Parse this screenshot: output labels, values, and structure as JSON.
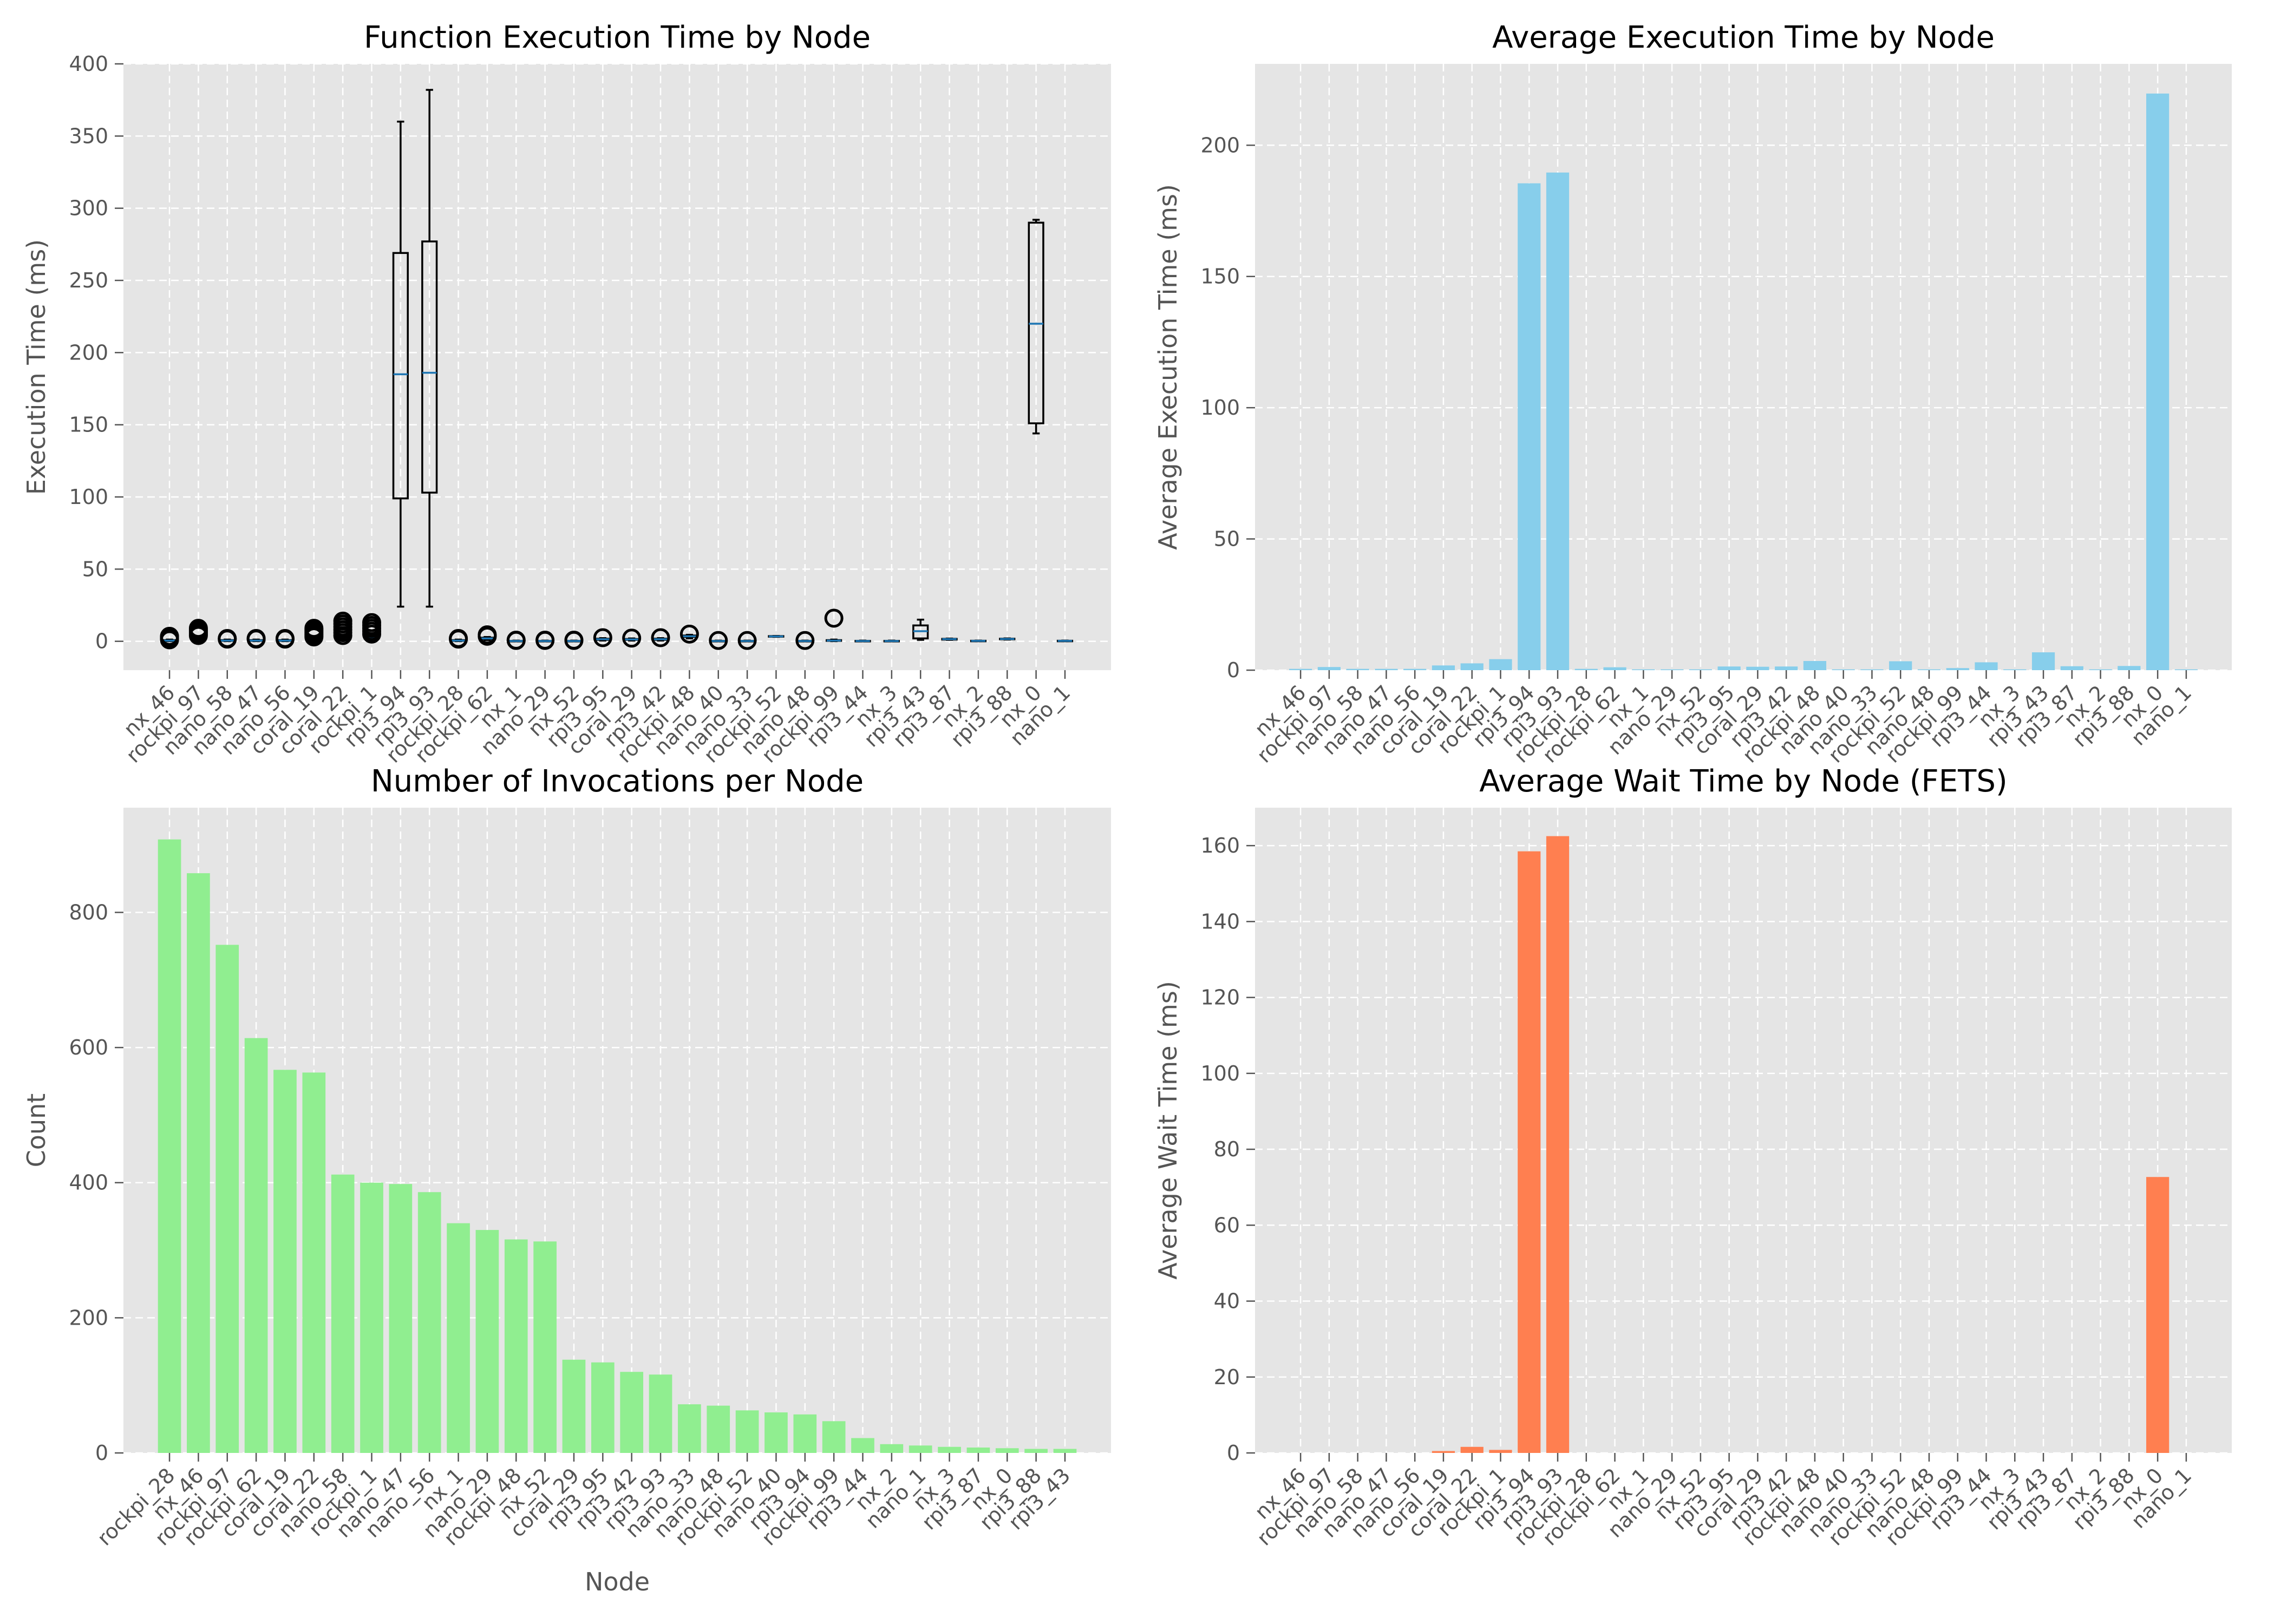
{
  "chart_data": [
    {
      "type": "box",
      "title": "Function Execution Time by Node",
      "xlabel": "",
      "ylabel": "Execution Time (ms)",
      "ylim": [
        -20,
        400
      ],
      "yticks": [
        0,
        50,
        100,
        150,
        200,
        250,
        300,
        350,
        400
      ],
      "grid": true,
      "categories": [
        "nx_46",
        "rockpi_97",
        "nano_58",
        "nano_47",
        "nano_56",
        "coral_19",
        "coral_22",
        "rockpi_1",
        "rpi3_94",
        "rpi3_93",
        "rockpi_28",
        "rockpi_62",
        "nx_1",
        "nano_29",
        "nx_52",
        "rpi3_95",
        "coral_29",
        "rpi3_42",
        "rockpi_48",
        "nano_40",
        "nano_33",
        "rockpi_52",
        "nano_48",
        "rockpi_99",
        "rpi3_44",
        "nx_3",
        "rpi3_43",
        "rpi3_87",
        "nx_2",
        "rpi3_88",
        "nx_0",
        "nano_1"
      ],
      "boxes": [
        {
          "q1": 0.3,
          "median": 0.5,
          "q3": 0.8,
          "whislo": 0.1,
          "whishi": 1.2,
          "fliers": [
            1,
            2,
            2.5,
            3,
            3.5
          ]
        },
        {
          "q1": 1.5,
          "median": 2,
          "q3": 2.5,
          "whislo": 0.8,
          "whishi": 3.5,
          "fliers": [
            4,
            5,
            6,
            7,
            8,
            9
          ]
        },
        {
          "q1": 0.3,
          "median": 0.5,
          "q3": 0.8,
          "whislo": 0.1,
          "whishi": 1.2,
          "fliers": [
            1.5,
            2
          ]
        },
        {
          "q1": 0.3,
          "median": 0.5,
          "q3": 0.8,
          "whislo": 0.1,
          "whishi": 1.2,
          "fliers": [
            1.5,
            2
          ]
        },
        {
          "q1": 0.3,
          "median": 0.5,
          "q3": 0.8,
          "whislo": 0.1,
          "whishi": 1.2,
          "fliers": [
            1.5,
            2
          ]
        },
        {
          "q1": 1.2,
          "median": 1.8,
          "q3": 2.2,
          "whislo": 0.5,
          "whishi": 3,
          "fliers": [
            3,
            4,
            5,
            6,
            7,
            8,
            9
          ]
        },
        {
          "q1": 1.5,
          "median": 2.5,
          "q3": 3,
          "whislo": 0.5,
          "whishi": 4,
          "fliers": [
            4,
            6,
            8,
            10,
            12,
            14
          ]
        },
        {
          "q1": 2,
          "median": 3,
          "q3": 3.8,
          "whislo": 0.8,
          "whishi": 5,
          "fliers": [
            5,
            7,
            9,
            11,
            13
          ]
        },
        {
          "q1": 99,
          "median": 185,
          "q3": 269,
          "whislo": 24,
          "whishi": 360,
          "fliers": []
        },
        {
          "q1": 103,
          "median": 186,
          "q3": 277,
          "whislo": 24,
          "whishi": 382,
          "fliers": []
        },
        {
          "q1": 0.3,
          "median": 0.5,
          "q3": 0.8,
          "whislo": 0.1,
          "whishi": 1.2,
          "fliers": [
            1.5,
            2
          ]
        },
        {
          "q1": 1.5,
          "median": 2,
          "q3": 2.5,
          "whislo": 0.8,
          "whishi": 3,
          "fliers": [
            3.5,
            4.5
          ]
        },
        {
          "q1": 0.1,
          "median": 0.2,
          "q3": 0.3,
          "whislo": 0,
          "whishi": 0.5,
          "fliers": [
            0.6,
            0.8
          ]
        },
        {
          "q1": 0.1,
          "median": 0.2,
          "q3": 0.3,
          "whislo": 0,
          "whishi": 0.5,
          "fliers": [
            0.6,
            0.8
          ]
        },
        {
          "q1": 0.1,
          "median": 0.2,
          "q3": 0.3,
          "whislo": 0,
          "whishi": 0.5,
          "fliers": [
            0.6,
            0.8
          ]
        },
        {
          "q1": 1,
          "median": 1.4,
          "q3": 1.8,
          "whislo": 0.5,
          "whishi": 2.2,
          "fliers": [
            2.5
          ]
        },
        {
          "q1": 1,
          "median": 1.3,
          "q3": 1.6,
          "whislo": 0.5,
          "whishi": 2,
          "fliers": [
            2.2
          ]
        },
        {
          "q1": 1,
          "median": 1.4,
          "q3": 1.8,
          "whislo": 0.5,
          "whishi": 2.2,
          "fliers": [
            2.5
          ]
        },
        {
          "q1": 3,
          "median": 3.5,
          "q3": 4,
          "whislo": 2,
          "whishi": 4.5,
          "fliers": [
            5
          ]
        },
        {
          "q1": 0.1,
          "median": 0.2,
          "q3": 0.3,
          "whislo": 0,
          "whishi": 0.5,
          "fliers": [
            0.6
          ]
        },
        {
          "q1": 0.1,
          "median": 0.2,
          "q3": 0.3,
          "whislo": 0,
          "whishi": 0.5,
          "fliers": [
            0.6
          ]
        },
        {
          "q1": 3.2,
          "median": 3.4,
          "q3": 3.6,
          "whislo": 3.1,
          "whishi": 3.7,
          "fliers": []
        },
        {
          "q1": 0.1,
          "median": 0.2,
          "q3": 0.3,
          "whislo": 0,
          "whishi": 0.5,
          "fliers": [
            0.6
          ]
        },
        {
          "q1": 0.3,
          "median": 0.5,
          "q3": 0.8,
          "whislo": 0.1,
          "whishi": 1.2,
          "fliers": [
            16
          ]
        },
        {
          "q1": 0.1,
          "median": 0.2,
          "q3": 0.3,
          "whislo": 0,
          "whishi": 0.5,
          "fliers": []
        },
        {
          "q1": 0.1,
          "median": 0.2,
          "q3": 0.3,
          "whislo": 0,
          "whishi": 0.5,
          "fliers": []
        },
        {
          "q1": 2,
          "median": 7,
          "q3": 11,
          "whislo": 1,
          "whishi": 15,
          "fliers": []
        },
        {
          "q1": 1.2,
          "median": 1.5,
          "q3": 1.7,
          "whislo": 1,
          "whishi": 1.9,
          "fliers": []
        },
        {
          "q1": 0.2,
          "median": 0.3,
          "q3": 0.4,
          "whislo": 0.1,
          "whishi": 0.5,
          "fliers": []
        },
        {
          "q1": 1.4,
          "median": 1.6,
          "q3": 1.8,
          "whislo": 1.2,
          "whishi": 2,
          "fliers": []
        },
        {
          "q1": 151,
          "median": 220,
          "q3": 290,
          "whislo": 144,
          "whishi": 292,
          "fliers": []
        },
        {
          "q1": 0.2,
          "median": 0.3,
          "q3": 0.4,
          "whislo": 0.1,
          "whishi": 0.5,
          "fliers": []
        }
      ]
    },
    {
      "type": "bar",
      "title": "Average Execution Time by Node",
      "xlabel": "",
      "ylabel": "Average Execution Time (ms)",
      "ylim": [
        0,
        231
      ],
      "yticks": [
        0,
        50,
        100,
        150,
        200
      ],
      "grid": true,
      "color": "#87ceeb",
      "categories": [
        "nx_46",
        "rockpi_97",
        "nano_58",
        "nano_47",
        "nano_56",
        "coral_19",
        "coral_22",
        "rockpi_1",
        "rpi3_94",
        "rpi3_93",
        "rockpi_28",
        "rockpi_62",
        "nx_1",
        "nano_29",
        "nx_52",
        "rpi3_95",
        "coral_29",
        "rpi3_42",
        "rockpi_48",
        "nano_40",
        "nano_33",
        "rockpi_52",
        "nano_48",
        "rockpi_99",
        "rpi3_44",
        "nx_3",
        "rpi3_43",
        "rpi3_87",
        "nx_2",
        "rpi3_88",
        "nx_0",
        "nano_1"
      ],
      "values": [
        0.5,
        1.2,
        0.5,
        0.5,
        0.5,
        1.8,
        2.6,
        4.2,
        185.5,
        189.6,
        0.5,
        1.1,
        0.2,
        0.2,
        0.2,
        1.4,
        1.3,
        1.4,
        3.5,
        0.2,
        0.2,
        3.4,
        0.3,
        0.8,
        3.0,
        0.2,
        6.8,
        1.5,
        0.3,
        1.6,
        219.7,
        0.3
      ]
    },
    {
      "type": "bar",
      "title": "Number of Invocations per Node",
      "xlabel": "Node",
      "ylabel": "Count",
      "ylim": [
        0,
        955
      ],
      "yticks": [
        0,
        200,
        400,
        600,
        800
      ],
      "grid": true,
      "color": "#90ee90",
      "categories": [
        "rockpi_28",
        "nx_46",
        "rockpi_97",
        "rockpi_62",
        "coral_19",
        "coral_22",
        "nano_58",
        "rockpi_1",
        "nano_47",
        "nano_56",
        "nx_1",
        "nano_29",
        "rockpi_48",
        "nx_52",
        "coral_29",
        "rpi3_95",
        "rpi3_42",
        "rpi3_93",
        "nano_33",
        "nano_48",
        "rockpi_52",
        "nano_40",
        "rpi3_94",
        "rockpi_99",
        "rpi3_44",
        "nx_2",
        "nano_1",
        "nx_3",
        "rpi3_87",
        "nx_0",
        "rpi3_88",
        "rpi3_43"
      ],
      "values": [
        908,
        858,
        752,
        614,
        567,
        563,
        412,
        400,
        398,
        386,
        340,
        330,
        316,
        313,
        138,
        134,
        120,
        116,
        72,
        70,
        63,
        60,
        57,
        47,
        22,
        13,
        11,
        9,
        8,
        7,
        6,
        6
      ]
    },
    {
      "type": "bar",
      "title": "Average Wait Time by Node (FETS)",
      "xlabel": "",
      "ylabel": "Average Wait Time (ms)",
      "ylim": [
        0,
        170
      ],
      "yticks": [
        0,
        20,
        40,
        60,
        80,
        100,
        120,
        140,
        160
      ],
      "grid": true,
      "color": "#ff7f50",
      "categories": [
        "nx_46",
        "rockpi_97",
        "nano_58",
        "nano_47",
        "nano_56",
        "coral_19",
        "coral_22",
        "rockpi_1",
        "rpi3_94",
        "rpi3_93",
        "rockpi_28",
        "rockpi_62",
        "nx_1",
        "nano_29",
        "nx_52",
        "rpi3_95",
        "coral_29",
        "rpi3_42",
        "rockpi_48",
        "nano_40",
        "nano_33",
        "rockpi_52",
        "nano_48",
        "rockpi_99",
        "rpi3_44",
        "nx_3",
        "rpi3_43",
        "rpi3_87",
        "nx_2",
        "rpi3_88",
        "nx_0",
        "nano_1"
      ],
      "values": [
        0,
        0,
        0,
        0,
        0,
        0.5,
        1.6,
        0.8,
        158.5,
        162.5,
        0,
        0,
        0,
        0,
        0,
        0,
        0,
        0,
        0,
        0,
        0,
        0,
        0,
        0,
        0,
        0,
        0,
        0,
        0,
        0,
        72.7,
        0
      ]
    }
  ]
}
